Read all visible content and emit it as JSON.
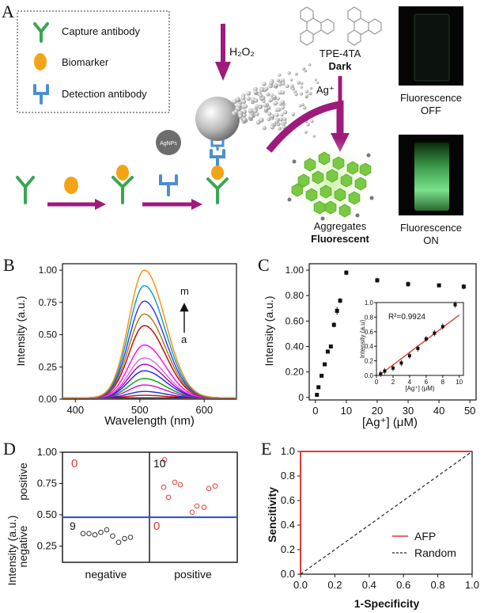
{
  "panels": {
    "a": "A",
    "b": "B",
    "c": "C",
    "d": "D",
    "e": "E"
  },
  "panel_a": {
    "legend": {
      "capture": "Capture antibody",
      "biomarker": "Biomarker",
      "detection": "Detection antibody"
    },
    "agnps_label": "AgNPs",
    "h2o2_label": "H₂O₂",
    "ag_label": "Ag⁺",
    "tpe_title": "TPE-4TA",
    "tpe_state": "Dark",
    "aggregates_line1": "Aggregates",
    "aggregates_line2": "Fluorescent",
    "fluor_off_line1": "Fluorescence",
    "fluor_off_line2": "OFF",
    "fluor_on_line1": "Fluorescence",
    "fluor_on_line2": "ON",
    "colors": {
      "capture": "#3aa655",
      "biomarker": "#f3a416",
      "detection": "#4a8fd0",
      "arrow": "#9e1b7c",
      "green": "#7ac943"
    }
  },
  "chart_data": [
    {
      "panel": "B",
      "type": "line",
      "xlabel": "Wavelength (nm)",
      "ylabel": "Intensity (a.u.)",
      "xlim": [
        380,
        650
      ],
      "ylim": [
        0,
        1.05
      ],
      "xticks": [
        "400",
        "500",
        "600"
      ],
      "yticks": [
        "0.00",
        "0.25",
        "0.50",
        "0.75",
        "1.00"
      ],
      "peak_wavelength": 507,
      "series_peaks": [
        0.0,
        0.02,
        0.05,
        0.1,
        0.15,
        0.21,
        0.26,
        0.31,
        0.41,
        0.56,
        0.65,
        0.75,
        0.87,
        0.99
      ],
      "series_colors": [
        "#1f1f1f",
        "#e00000",
        "#1a2bd8",
        "#e000e0",
        "#00a000",
        "#1a1aff",
        "#a000c0",
        "#e060e0",
        "#ff00ff",
        "#c00000",
        "#a08000",
        "#3030ff",
        "#00a0c0",
        "#ff8c00"
      ],
      "annotation_top": "m",
      "annotation_bottom": "a"
    },
    {
      "panel": "C",
      "type": "scatter",
      "xlabel": "[Ag⁺] (μM)",
      "ylabel": "Intensity (a.u.)",
      "xlim": [
        -2,
        52
      ],
      "ylim": [
        -0.02,
        1.05
      ],
      "xticks": [
        "0",
        "10",
        "20",
        "30",
        "40",
        "50"
      ],
      "yticks": [
        "0",
        "0.20",
        "0.40",
        "0.60",
        "0.80",
        "1.00"
      ],
      "x": [
        0.5,
        1,
        2,
        3,
        4,
        5,
        6,
        7,
        8,
        10,
        20,
        30,
        40,
        48
      ],
      "y": [
        0.02,
        0.08,
        0.17,
        0.26,
        0.36,
        0.4,
        0.57,
        0.68,
        0.76,
        0.98,
        0.92,
        0.89,
        0.88,
        0.87
      ],
      "err": [
        0.01,
        0.01,
        0.01,
        0.01,
        0.01,
        0.01,
        0.02,
        0.03,
        0.02,
        0.02,
        0.02,
        0.02,
        0.01,
        0.02
      ],
      "inset": {
        "xlabel": "[Ag⁺] (μM)",
        "ylabel": "Intensity (a.u)",
        "xlim": [
          0,
          10.5
        ],
        "ylim": [
          0,
          1.0
        ],
        "xticks": [
          "0",
          "2",
          "4",
          "6",
          "8",
          "10"
        ],
        "yticks": [
          "0.0",
          "0.2",
          "0.4",
          "0.6",
          "0.8",
          "1.0"
        ],
        "x": [
          0.5,
          1,
          2,
          3,
          4,
          5,
          6,
          7,
          8,
          9.5
        ],
        "y": [
          0.02,
          0.06,
          0.1,
          0.17,
          0.27,
          0.37,
          0.5,
          0.58,
          0.67,
          0.97
        ],
        "fit": [
          [
            0.3,
            0.0
          ],
          [
            10,
            0.83
          ]
        ],
        "r2": "R²=0.9924"
      }
    },
    {
      "panel": "D",
      "type": "scatter",
      "xlabel_left": "negative",
      "xlabel_right": "positive",
      "ylabel": "Intensity (a.u.)",
      "ylabel_neg": "negative",
      "ylabel_pos": "positive",
      "ylim": [
        0.12,
        1.0
      ],
      "yticks": [
        "0.25",
        "0.50",
        "0.75",
        "1.00"
      ],
      "threshold": 0.48,
      "counts": {
        "tl": "0",
        "tr": "10",
        "bl": "9",
        "br": "0"
      },
      "negative_values": [
        0.35,
        0.35,
        0.34,
        0.36,
        0.38,
        0.33,
        0.28,
        0.31,
        0.32
      ],
      "positive_values": [
        0.94,
        0.72,
        0.64,
        0.76,
        0.74,
        0.52,
        0.57,
        0.56,
        0.71,
        0.73
      ]
    },
    {
      "panel": "E",
      "type": "line",
      "xlabel": "1-Specificity",
      "ylabel": "Sencitivity",
      "xlim": [
        0,
        1
      ],
      "ylim": [
        0,
        1
      ],
      "xticks": [
        "0.0",
        "0.2",
        "0.4",
        "0.6",
        "0.8",
        "1.0"
      ],
      "yticks": [
        "0.0",
        "0.2",
        "0.4",
        "0.6",
        "0.8",
        "1.0"
      ],
      "series": [
        {
          "name": "AFP",
          "x": [
            0,
            0,
            1
          ],
          "y": [
            0,
            1,
            1
          ],
          "color": "#e53935"
        },
        {
          "name": "Random",
          "x": [
            0,
            1
          ],
          "y": [
            0,
            1
          ],
          "color": "#222222"
        }
      ]
    }
  ]
}
